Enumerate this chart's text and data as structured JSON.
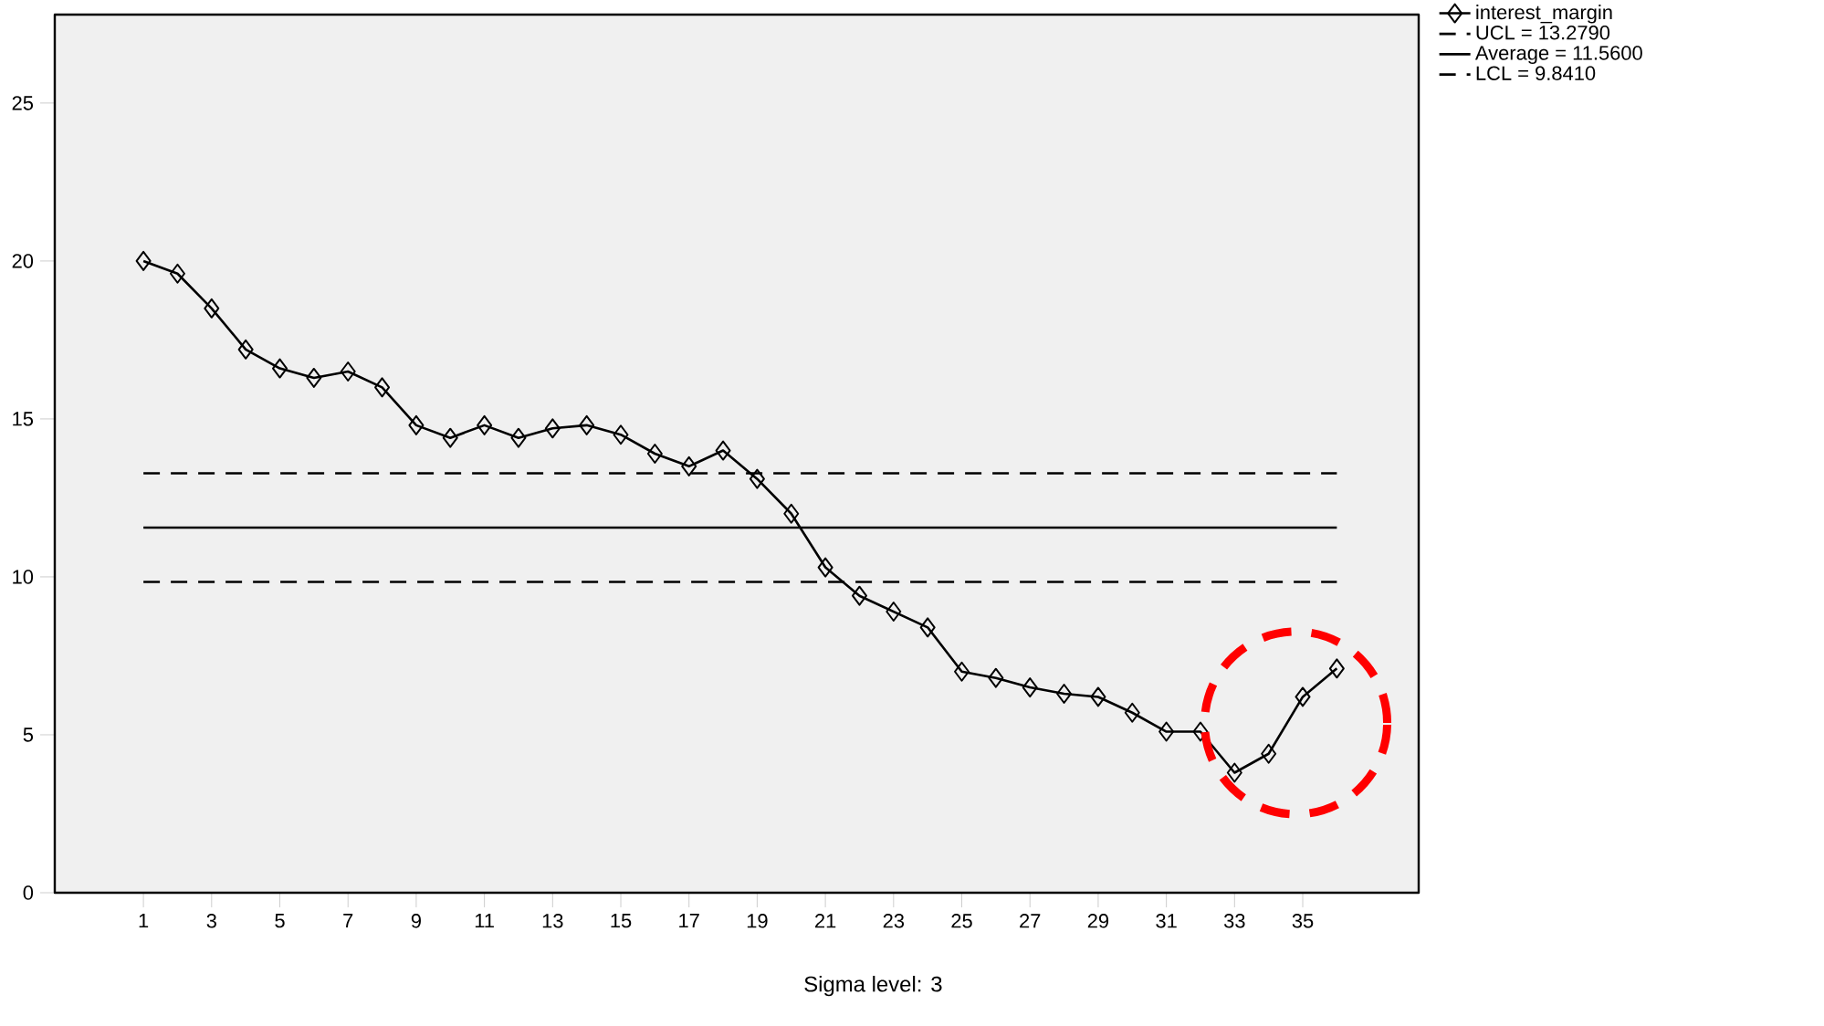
{
  "chart_data": {
    "type": "line",
    "x": [
      1,
      2,
      3,
      4,
      5,
      6,
      7,
      8,
      9,
      10,
      11,
      12,
      13,
      14,
      15,
      16,
      17,
      18,
      19,
      20,
      21,
      22,
      23,
      24,
      25,
      26,
      27,
      28,
      29,
      30,
      31,
      32,
      33,
      34,
      35,
      36
    ],
    "series": [
      {
        "name": "interest_margin",
        "color": "#000000",
        "values": [
          20.0,
          19.6,
          18.5,
          17.2,
          16.6,
          16.3,
          16.5,
          16.0,
          14.8,
          14.4,
          14.8,
          14.4,
          14.7,
          14.8,
          14.5,
          13.9,
          13.5,
          14.0,
          13.1,
          12.0,
          10.3,
          9.4,
          8.9,
          8.4,
          7.0,
          6.8,
          6.5,
          6.3,
          6.2,
          5.7,
          5.1,
          5.1,
          3.8,
          4.4,
          6.2,
          7.1
        ]
      }
    ],
    "xlim": [
      -1.6,
      38.4
    ],
    "xticks": [
      1,
      3,
      5,
      7,
      9,
      11,
      13,
      15,
      17,
      19,
      21,
      23,
      25,
      27,
      29,
      31,
      33,
      35
    ],
    "ylim": [
      0,
      27.8
    ],
    "yticks": [
      0,
      5,
      10,
      15,
      20,
      25
    ],
    "ref_lines": [
      {
        "axis": "y",
        "value": 13.279,
        "label": "UCL = 13.2790",
        "line_style": "dashed",
        "color": "#000000"
      },
      {
        "axis": "y",
        "value": 11.56,
        "label": "Average = 11.5600",
        "line_style": "solid",
        "color": "#000000"
      },
      {
        "axis": "y",
        "value": 9.841,
        "label": "LCL = 9.8410",
        "line_style": "dashed",
        "color": "#000000"
      }
    ],
    "annotations": [
      "Sigma level:       3"
    ],
    "marker": "diamond",
    "line_style": "solid",
    "legend": "top right"
  }
}
